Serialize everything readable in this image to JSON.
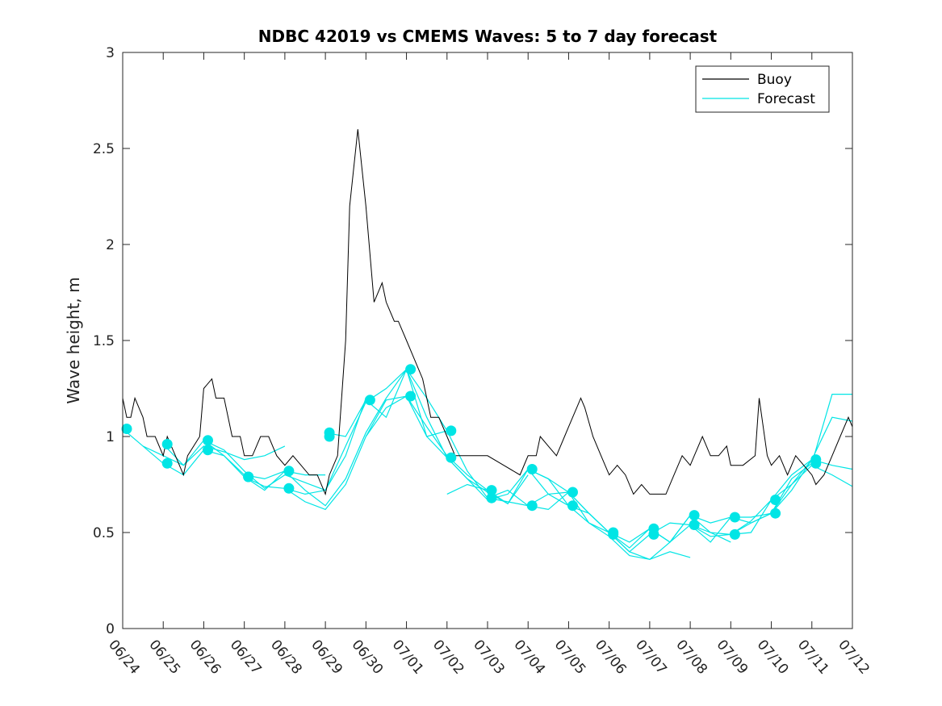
{
  "chart_data": {
    "type": "line",
    "title": "NDBC 42019 vs CMEMS Waves: 5 to 7 day forecast",
    "ylabel": "Wave height, m",
    "xlabel": "",
    "x_tick_labels": [
      "06/24",
      "06/25",
      "06/26",
      "06/27",
      "06/28",
      "06/29",
      "06/30",
      "07/01",
      "07/02",
      "07/03",
      "07/04",
      "07/05",
      "07/06",
      "07/07",
      "07/08",
      "07/09",
      "07/10",
      "07/11",
      "07/12"
    ],
    "xlim_days": [
      0,
      18
    ],
    "y_ticks": [
      0,
      0.5,
      1,
      1.5,
      2,
      2.5,
      3
    ],
    "ylim": [
      0,
      3
    ],
    "grid": false,
    "legend": {
      "placement": "top-right",
      "entries": [
        {
          "name": "Buoy",
          "color": "#000000"
        },
        {
          "name": "Forecast",
          "color": "#00e5e5"
        }
      ]
    },
    "colors": {
      "buoy": "#000000",
      "forecast": "#00e5e5"
    },
    "buoy": {
      "name": "Buoy",
      "x": [
        0,
        0.1,
        0.2,
        0.3,
        0.5,
        0.6,
        0.8,
        1.0,
        1.1,
        1.3,
        1.5,
        1.6,
        1.9,
        2.0,
        2.2,
        2.3,
        2.5,
        2.7,
        2.9,
        3.0,
        3.2,
        3.4,
        3.6,
        3.8,
        4.0,
        4.2,
        4.4,
        4.6,
        4.8,
        5.0,
        5.1,
        5.3,
        5.5,
        5.6,
        5.8,
        6.0,
        6.2,
        6.4,
        6.5,
        6.7,
        6.8,
        7.0,
        7.2,
        7.4,
        7.5,
        7.6,
        7.8,
        8.0,
        8.2,
        8.5,
        8.8,
        9.0,
        9.4,
        9.8,
        10.0,
        10.2,
        10.3,
        10.5,
        10.7,
        10.9,
        11.0,
        11.2,
        11.3,
        11.4,
        11.6,
        11.8,
        12.0,
        12.2,
        12.4,
        12.6,
        12.8,
        13.0,
        13.2,
        13.4,
        13.6,
        13.8,
        14.0,
        14.1,
        14.3,
        14.5,
        14.7,
        14.9,
        15.0,
        15.3,
        15.6,
        15.7,
        15.9,
        16.0,
        16.2,
        16.4,
        16.6,
        16.8,
        17.0,
        17.1,
        17.3,
        17.5,
        17.7,
        17.9,
        18.0
      ],
      "y": [
        1.2,
        1.1,
        1.1,
        1.2,
        1.1,
        1.0,
        1.0,
        0.9,
        1.0,
        0.9,
        0.8,
        0.9,
        1.0,
        1.25,
        1.3,
        1.2,
        1.2,
        1.0,
        1.0,
        0.9,
        0.9,
        1.0,
        1.0,
        0.9,
        0.85,
        0.9,
        0.85,
        0.8,
        0.8,
        0.7,
        0.8,
        0.9,
        1.5,
        2.2,
        2.6,
        2.2,
        1.7,
        1.8,
        1.7,
        1.6,
        1.6,
        1.5,
        1.4,
        1.3,
        1.2,
        1.1,
        1.1,
        1.0,
        0.9,
        0.9,
        0.9,
        0.9,
        0.85,
        0.8,
        0.9,
        0.9,
        1.0,
        0.95,
        0.9,
        1.0,
        1.05,
        1.15,
        1.2,
        1.15,
        1.0,
        0.9,
        0.8,
        0.85,
        0.8,
        0.7,
        0.75,
        0.7,
        0.7,
        0.7,
        0.8,
        0.9,
        0.85,
        0.9,
        1.0,
        0.9,
        0.9,
        0.95,
        0.85,
        0.85,
        0.9,
        1.2,
        0.9,
        0.85,
        0.9,
        0.8,
        0.9,
        0.85,
        0.8,
        0.75,
        0.8,
        0.9,
        1.0,
        1.1,
        1.05
      ]
    },
    "forecast_series": [
      {
        "x": [
          0,
          0.5,
          1.0,
          1.5,
          2.0,
          2.5,
          3.0,
          3.5,
          4.0
        ],
        "y": [
          1.04,
          0.95,
          0.9,
          0.85,
          0.95,
          0.92,
          0.88,
          0.9,
          0.95
        ]
      },
      {
        "x": [
          0.5,
          1.0,
          1.5,
          2.0,
          2.5,
          3.0,
          3.5,
          4.0,
          4.5,
          5.0
        ],
        "y": [
          0.95,
          0.86,
          0.8,
          0.93,
          0.9,
          0.8,
          0.78,
          0.82,
          0.8,
          0.8
        ]
      },
      {
        "x": [
          1.0,
          1.5,
          2.0,
          2.5,
          3.0,
          3.5,
          4.0,
          4.5,
          5.0,
          5.5,
          6.0
        ],
        "y": [
          0.96,
          0.85,
          0.98,
          0.9,
          0.79,
          0.74,
          0.73,
          0.7,
          0.72,
          0.9,
          1.2
        ]
      },
      {
        "x": [
          2.0,
          2.5,
          3.0,
          3.5,
          4.0,
          4.5,
          5.0,
          5.5,
          6.0,
          6.5,
          7.0
        ],
        "y": [
          0.98,
          0.93,
          0.82,
          0.73,
          0.8,
          0.76,
          0.72,
          0.95,
          1.18,
          1.25,
          1.35
        ]
      },
      {
        "x": [
          3.0,
          3.5,
          4.0,
          4.5,
          5.0,
          5.5,
          6.0,
          6.5,
          7.0,
          7.5,
          8.0
        ],
        "y": [
          0.79,
          0.72,
          0.82,
          0.72,
          0.64,
          0.78,
          1.02,
          1.2,
          1.35,
          1.2,
          1.03
        ]
      },
      {
        "x": [
          4.0,
          4.5,
          5.0,
          5.5,
          6.0,
          6.5,
          7.0,
          7.5,
          8.0,
          8.5,
          9.0
        ],
        "y": [
          0.73,
          0.66,
          0.62,
          0.75,
          1.0,
          1.19,
          1.21,
          1.05,
          0.9,
          0.8,
          0.72
        ]
      },
      {
        "x": [
          5.0,
          5.5,
          6.0,
          6.5,
          7.0,
          7.5,
          8.0,
          8.5,
          9.0,
          9.5,
          10.0
        ],
        "y": [
          1.02,
          1.0,
          1.19,
          1.1,
          1.35,
          1.0,
          0.89,
          0.78,
          0.71,
          0.65,
          0.8
        ]
      },
      {
        "x": [
          6.0,
          6.5,
          7.0,
          7.5,
          8.0,
          8.5,
          9.0,
          9.5,
          10.0,
          10.5,
          11.0
        ],
        "y": [
          1.0,
          1.15,
          1.21,
          1.0,
          1.03,
          0.82,
          0.68,
          0.66,
          0.64,
          0.7,
          0.71
        ]
      },
      {
        "x": [
          7.0,
          7.5,
          8.0,
          8.5,
          9.0,
          9.5,
          10.0,
          10.5,
          11.0,
          11.5,
          12.0
        ],
        "y": [
          1.35,
          1.1,
          0.89,
          0.78,
          0.67,
          0.7,
          0.83,
          0.7,
          0.64,
          0.6,
          0.5
        ]
      },
      {
        "x": [
          8.0,
          8.5,
          9.0,
          9.5,
          10.0,
          10.5,
          11.0,
          11.5,
          12.0,
          12.5,
          13.0
        ],
        "y": [
          0.7,
          0.75,
          0.72,
          0.65,
          0.83,
          0.78,
          0.71,
          0.6,
          0.5,
          0.45,
          0.52
        ]
      },
      {
        "x": [
          9.0,
          9.5,
          10.0,
          10.5,
          11.0,
          11.5,
          12.0,
          12.5,
          13.0,
          13.5,
          14.0
        ],
        "y": [
          0.68,
          0.72,
          0.64,
          0.62,
          0.71,
          0.55,
          0.48,
          0.38,
          0.36,
          0.4,
          0.37
        ]
      },
      {
        "x": [
          10.0,
          10.5,
          11.0,
          11.5,
          12.0,
          12.5,
          13.0,
          13.5,
          14.0,
          14.5,
          15.0
        ],
        "y": [
          0.83,
          0.78,
          0.64,
          0.55,
          0.5,
          0.4,
          0.49,
          0.55,
          0.54,
          0.5,
          0.45
        ]
      },
      {
        "x": [
          11.0,
          11.5,
          12.0,
          12.5,
          13.0,
          13.5,
          14.0,
          14.5,
          15.0,
          15.5,
          16.0
        ],
        "y": [
          0.71,
          0.6,
          0.5,
          0.42,
          0.52,
          0.45,
          0.59,
          0.55,
          0.58,
          0.55,
          0.6
        ]
      },
      {
        "x": [
          12.0,
          12.5,
          13.0,
          13.5,
          14.0,
          14.5,
          15.0,
          15.5,
          16.0,
          16.5,
          17.0
        ],
        "y": [
          0.5,
          0.4,
          0.36,
          0.45,
          0.59,
          0.5,
          0.49,
          0.56,
          0.67,
          0.8,
          0.88
        ]
      },
      {
        "x": [
          13.0,
          13.5,
          14.0,
          14.5,
          15.0,
          15.5,
          16.0,
          16.5,
          17.0,
          17.5,
          18.0
        ],
        "y": [
          0.52,
          0.45,
          0.54,
          0.45,
          0.58,
          0.58,
          0.6,
          0.78,
          0.86,
          1.22,
          1.22
        ]
      },
      {
        "x": [
          14.0,
          14.5,
          15.0,
          15.5,
          16.0,
          16.5,
          17.0,
          17.5,
          18.0
        ],
        "y": [
          0.54,
          0.48,
          0.49,
          0.5,
          0.67,
          0.75,
          0.88,
          1.1,
          1.08
        ]
      },
      {
        "x": [
          15.0,
          15.5,
          16.0,
          16.5,
          17.0,
          17.5,
          18.0
        ],
        "y": [
          0.49,
          0.55,
          0.6,
          0.72,
          0.88,
          0.85,
          0.83
        ]
      },
      {
        "x": [
          16.0,
          16.5,
          17.0,
          17.5,
          18.0
        ],
        "y": [
          0.6,
          0.75,
          0.85,
          0.8,
          0.74
        ]
      }
    ],
    "forecast_markers": {
      "x": [
        0.1,
        1.1,
        1.1,
        2.1,
        2.1,
        3.1,
        3.1,
        4.1,
        4.1,
        5.1,
        5.1,
        6.1,
        7.1,
        7.1,
        8.1,
        8.1,
        9.1,
        9.1,
        10.1,
        10.1,
        11.1,
        11.1,
        12.1,
        12.1,
        13.1,
        13.1,
        14.1,
        14.1,
        15.1,
        15.1,
        16.1,
        16.1,
        17.1,
        17.1
      ],
      "y": [
        1.04,
        0.96,
        0.86,
        0.98,
        0.93,
        0.79,
        0.79,
        0.82,
        0.73,
        1.02,
        1.0,
        1.19,
        1.35,
        1.21,
        1.03,
        0.89,
        0.72,
        0.68,
        0.83,
        0.64,
        0.71,
        0.64,
        0.5,
        0.49,
        0.52,
        0.49,
        0.59,
        0.54,
        0.58,
        0.49,
        0.67,
        0.6,
        0.88,
        0.86
      ]
    }
  }
}
